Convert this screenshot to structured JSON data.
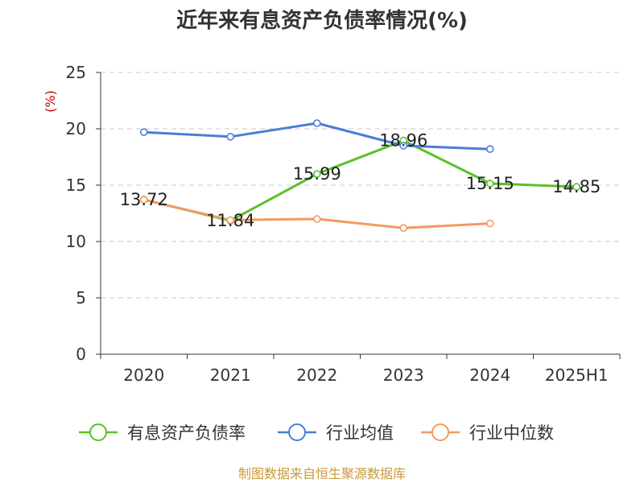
{
  "chart_data": {
    "type": "line",
    "title": "近年来有息资产负债率情况(%)",
    "ylabel": "(%)",
    "xlabel": "",
    "categories": [
      "2020",
      "2021",
      "2022",
      "2023",
      "2024",
      "2025H1"
    ],
    "ylim": [
      0,
      25
    ],
    "yticks": [
      0,
      5,
      10,
      15,
      20,
      25
    ],
    "grid": true,
    "legend_position": "bottom",
    "series": [
      {
        "name": "有息资产负债率",
        "color": "#5ac12a",
        "values": [
          13.72,
          11.84,
          15.99,
          18.96,
          15.15,
          14.85
        ],
        "labels": [
          "13.72",
          "11.84",
          "15.99",
          "18.96",
          "15.15",
          "14.85"
        ]
      },
      {
        "name": "行业均值",
        "color": "#4a7ed6",
        "values": [
          19.7,
          19.3,
          20.5,
          18.5,
          18.2,
          null
        ]
      },
      {
        "name": "行业中位数",
        "color": "#f39a62",
        "values": [
          13.7,
          11.9,
          12.0,
          11.2,
          11.6,
          null
        ]
      }
    ]
  },
  "source": "制图数据来自恒生聚源数据库"
}
